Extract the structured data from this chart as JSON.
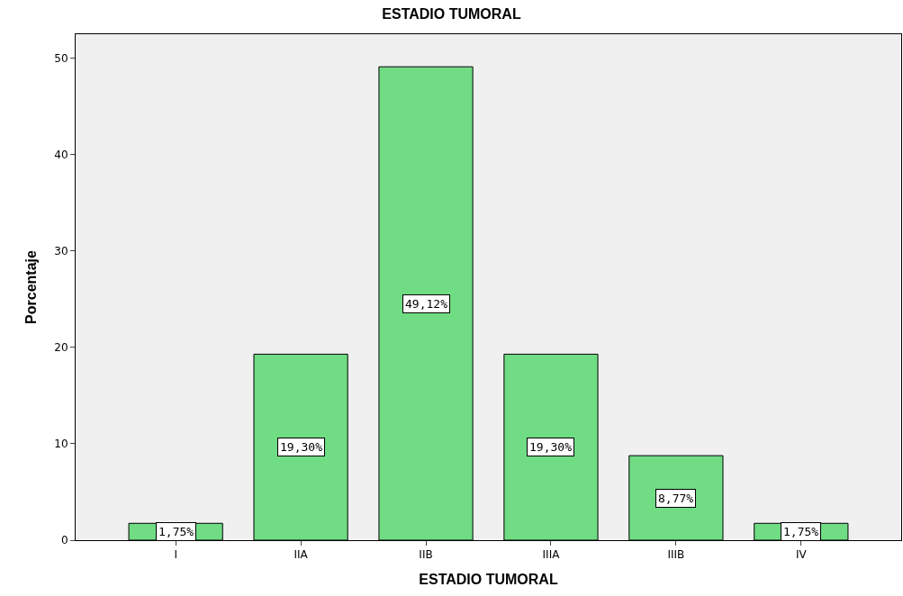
{
  "chart_data": {
    "type": "bar",
    "title": "ESTADIO TUMORAL",
    "xlabel": "ESTADIO TUMORAL",
    "ylabel": "Porcentaje",
    "categories": [
      "I",
      "IIA",
      "IIB",
      "IIIA",
      "IIIB",
      "IV"
    ],
    "values": [
      1.75,
      19.3,
      49.12,
      19.3,
      8.77,
      1.75
    ],
    "value_labels": [
      "1,75%",
      "19,30%",
      "49,12%",
      "19,30%",
      "8,77%",
      "1,75%"
    ],
    "color": "#70dc84",
    "ylim": [
      0,
      52.5
    ],
    "yticks": [
      0,
      10,
      20,
      30,
      40,
      50
    ],
    "grid": false,
    "legend": false
  }
}
